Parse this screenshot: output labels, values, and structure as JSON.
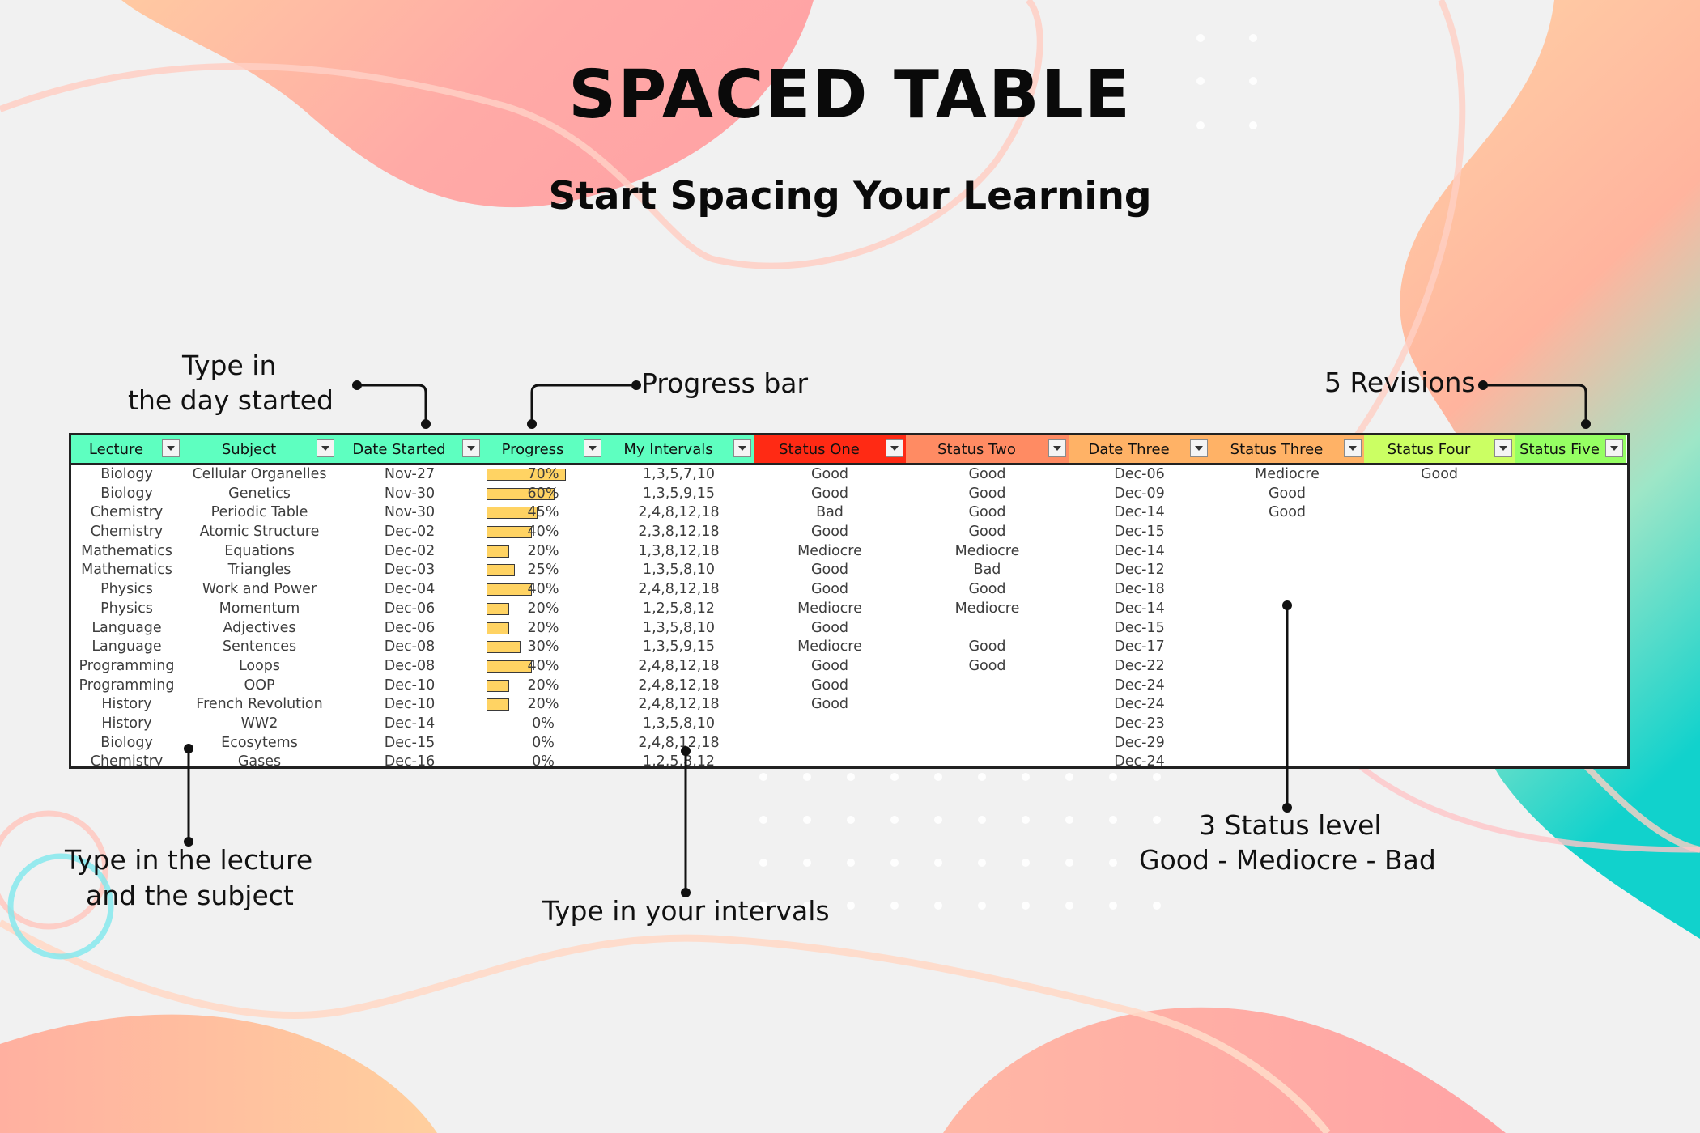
{
  "page": {
    "title": "SPACED TABLE",
    "subtitle": "Start Spacing Your Learning"
  },
  "annotations": {
    "day_started": [
      "Type in",
      "the day started"
    ],
    "progress_bar": "Progress bar",
    "revisions": "5 Revisions",
    "lecture_subject": [
      "Type in the lecture",
      "and the subject"
    ],
    "intervals": "Type in your intervals",
    "status_levels": [
      "3 Status level",
      "Good - Mediocre - Bad"
    ]
  },
  "table": {
    "headers": [
      {
        "label": "Lecture",
        "color": "#5effc0"
      },
      {
        "label": "Subject",
        "color": "#5effc0"
      },
      {
        "label": "Date Started",
        "color": "#5effc0"
      },
      {
        "label": "Progress",
        "color": "#5effc0"
      },
      {
        "label": "My Intervals",
        "color": "#5effc0"
      },
      {
        "label": "Status One",
        "color": "#ff2a14"
      },
      {
        "label": "Status Two",
        "color": "#ff8b63"
      },
      {
        "label": "Date Three",
        "color": "#ffb266"
      },
      {
        "label": "Status Three",
        "color": "#ffb266"
      },
      {
        "label": "Status Four",
        "color": "#cbff63"
      },
      {
        "label": "Status Five",
        "color": "#95ff63"
      }
    ],
    "rows": [
      [
        "Biology",
        "Cellular Organelles",
        "Nov-27",
        "70%",
        "1,3,5,7,10",
        "Good",
        "Good",
        "Dec-06",
        "Mediocre",
        "Good",
        ""
      ],
      [
        "Biology",
        "Genetics",
        "Nov-30",
        "60%",
        "1,3,5,9,15",
        "Good",
        "Good",
        "Dec-09",
        "Good",
        "",
        ""
      ],
      [
        "Chemistry",
        "Periodic Table",
        "Nov-30",
        "45%",
        "2,4,8,12,18",
        "Bad",
        "Good",
        "Dec-14",
        "Good",
        "",
        ""
      ],
      [
        "Chemistry",
        "Atomic Structure",
        "Dec-02",
        "40%",
        "2,3,8,12,18",
        "Good",
        "Good",
        "Dec-15",
        "",
        "",
        ""
      ],
      [
        "Mathematics",
        "Equations",
        "Dec-02",
        "20%",
        "1,3,8,12,18",
        "Mediocre",
        "Mediocre",
        "Dec-14",
        "",
        "",
        ""
      ],
      [
        "Mathematics",
        "Triangles",
        "Dec-03",
        "25%",
        "1,3,5,8,10",
        "Good",
        "Bad",
        "Dec-12",
        "",
        "",
        ""
      ],
      [
        "Physics",
        "Work and Power",
        "Dec-04",
        "40%",
        "2,4,8,12,18",
        "Good",
        "Good",
        "Dec-18",
        "",
        "",
        ""
      ],
      [
        "Physics",
        "Momentum",
        "Dec-06",
        "20%",
        "1,2,5,8,12",
        "Mediocre",
        "Mediocre",
        "Dec-14",
        "",
        "",
        ""
      ],
      [
        "Language",
        "Adjectives",
        "Dec-06",
        "20%",
        "1,3,5,8,10",
        "Good",
        "",
        "Dec-15",
        "",
        "",
        ""
      ],
      [
        "Language",
        "Sentences",
        "Dec-08",
        "30%",
        "1,3,5,9,15",
        "Mediocre",
        "Good",
        "Dec-17",
        "",
        "",
        ""
      ],
      [
        "Programming",
        "Loops",
        "Dec-08",
        "40%",
        "2,4,8,12,18",
        "Good",
        "Good",
        "Dec-22",
        "",
        "",
        ""
      ],
      [
        "Programming",
        "OOP",
        "Dec-10",
        "20%",
        "2,4,8,12,18",
        "Good",
        "",
        "Dec-24",
        "",
        "",
        ""
      ],
      [
        "History",
        "French Revolution",
        "Dec-10",
        "20%",
        "2,4,8,12,18",
        "Good",
        "",
        "Dec-24",
        "",
        "",
        ""
      ],
      [
        "History",
        "WW2",
        "Dec-14",
        "0%",
        "1,3,5,8,10",
        "",
        "",
        "Dec-23",
        "",
        "",
        ""
      ],
      [
        "Biology",
        "Ecosytems",
        "Dec-15",
        "0%",
        "2,4,8,12,18",
        "",
        "",
        "Dec-29",
        "",
        "",
        ""
      ],
      [
        "Chemistry",
        "Gases",
        "Dec-16",
        "0%",
        "1,2,5,8,12",
        "",
        "",
        "Dec-24",
        "",
        "",
        ""
      ]
    ],
    "progress_fraction": [
      0.7,
      0.6,
      0.45,
      0.4,
      0.2,
      0.25,
      0.4,
      0.2,
      0.2,
      0.3,
      0.4,
      0.2,
      0.2,
      0,
      0,
      0
    ],
    "bar_color": "#ffd363"
  },
  "colors": {
    "blob_pink": "#ffb0a8",
    "blob_peach": "#ffcf9e",
    "blob_teal": "#21d6c4",
    "swirl": "#ffc9bf"
  }
}
